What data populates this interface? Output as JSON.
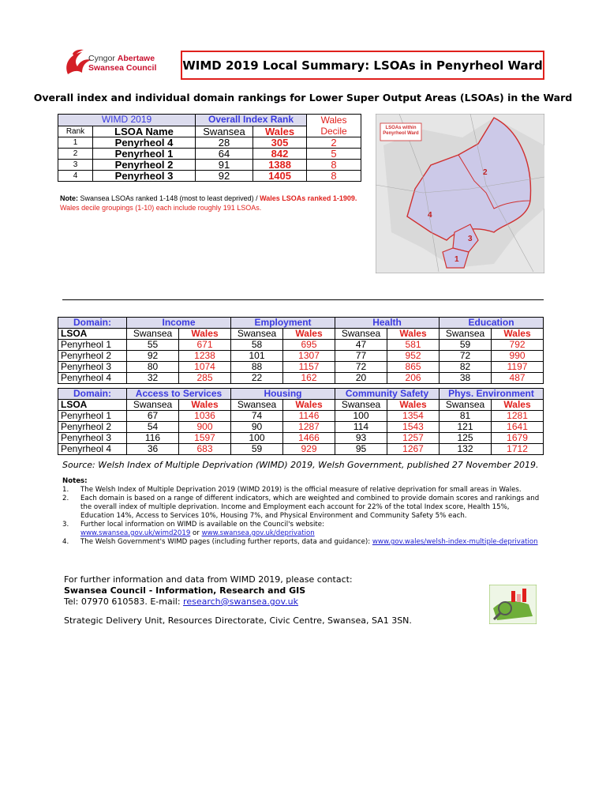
{
  "logo": {
    "welsh_prefix": "Cyngor",
    "welsh_name": "Abertawe",
    "english": "Swansea Council"
  },
  "title": "WIMD 2019 Local Summary: LSOAs in Penyrheol Ward",
  "subtitle": "Overall index and individual domain rankings for Lower Super Output Areas (LSOAs) in the Ward",
  "overall_table": {
    "group_headers": [
      "WIMD 2019",
      "Overall Index Rank",
      "Wales Decile"
    ],
    "headers": [
      "Rank",
      "LSOA Name",
      "Swansea",
      "Wales"
    ],
    "rows": [
      [
        1,
        "Penyrheol 4",
        28,
        305,
        2
      ],
      [
        2,
        "Penyrheol 1",
        64,
        842,
        5
      ],
      [
        3,
        "Penyrheol 2",
        91,
        1388,
        8
      ],
      [
        4,
        "Penyrheol 3",
        92,
        1405,
        8
      ]
    ]
  },
  "note": {
    "label": "Note:",
    "text": " Swansea LSOAs ranked 1-148 (most to least deprived) / ",
    "wales_range": "Wales LSOAs ranked 1-1909.",
    "deciles": "  Wales decile groupings (1-10) each include roughly 191 LSOAs."
  },
  "map": {
    "legend": "LSOAs within Penyrheol Ward",
    "area_labels": [
      "1",
      "2",
      "3",
      "4"
    ]
  },
  "domain_tables": [
    {
      "domain_label": "Domain:",
      "domains": [
        "Income",
        "Employment",
        "Health",
        "Education"
      ],
      "headers": [
        "LSOA",
        "Swansea",
        "Wales"
      ],
      "rows": [
        [
          "Penyrheol 1",
          55,
          671,
          58,
          695,
          47,
          581,
          59,
          792
        ],
        [
          "Penyrheol 2",
          92,
          1238,
          101,
          1307,
          77,
          952,
          72,
          990
        ],
        [
          "Penyrheol 3",
          80,
          1074,
          88,
          1157,
          72,
          865,
          82,
          1197
        ],
        [
          "Penyrheol 4",
          32,
          285,
          22,
          162,
          20,
          206,
          38,
          487
        ]
      ]
    },
    {
      "domain_label": "Domain:",
      "domains": [
        "Access to Services",
        "Housing",
        "Community Safety",
        "Phys. Environment"
      ],
      "headers": [
        "LSOA",
        "Swansea",
        "Wales"
      ],
      "rows": [
        [
          "Penyrheol 1",
          67,
          1036,
          74,
          1146,
          100,
          1354,
          81,
          1281
        ],
        [
          "Penyrheol 2",
          54,
          900,
          90,
          1287,
          114,
          1543,
          121,
          1641
        ],
        [
          "Penyrheol 3",
          116,
          1597,
          100,
          1466,
          93,
          1257,
          125,
          1679
        ],
        [
          "Penyrheol 4",
          36,
          683,
          59,
          929,
          95,
          1267,
          132,
          1712
        ]
      ]
    }
  ],
  "source": "Source: Welsh Index of Multiple Deprivation (WIMD) 2019, Welsh Government, published 27 November 2019.",
  "notes": {
    "heading": "Notes:",
    "items": [
      {
        "number": "1.",
        "text": "The Welsh Index of Multiple Deprivation 2019 (WIMD 2019) is the official measure of relative deprivation for small areas in Wales."
      },
      {
        "number": "2.",
        "text": "Each domain is based on a range of different indicators, which are weighted and combined to provide domain scores and rankings and the overall index of multiple deprivation.  Income and Employment each account for 22% of the total Index score, Health 15%, Education 14%, Access to Services 10%, Housing 7%, and Physical Environment and Community Safety 5% each."
      },
      {
        "number": "3.",
        "text": "Further local information on WIMD is available on the Council's website:",
        "link1": "www.swansea.gov.uk/wimd2019",
        "joiner": " or ",
        "link2": "www.swansea.gov.uk/deprivation"
      },
      {
        "number": "4.",
        "text": "The Welsh Government's WIMD pages (including further reports, data and guidance): ",
        "link1": "www.gov.wales/welsh-index-multiple-deprivation"
      }
    ]
  },
  "contact": {
    "intro": "For further information and data from WIMD 2019, please contact:",
    "team": "Swansea Council - Information, Research and GIS",
    "phone": "Tel: 07970 610583.  E-mail: ",
    "email": "research@swansea.gov.uk",
    "address": "Strategic Delivery Unit, Resources Directorate, Civic Centre, Swansea, SA1 3SN."
  }
}
